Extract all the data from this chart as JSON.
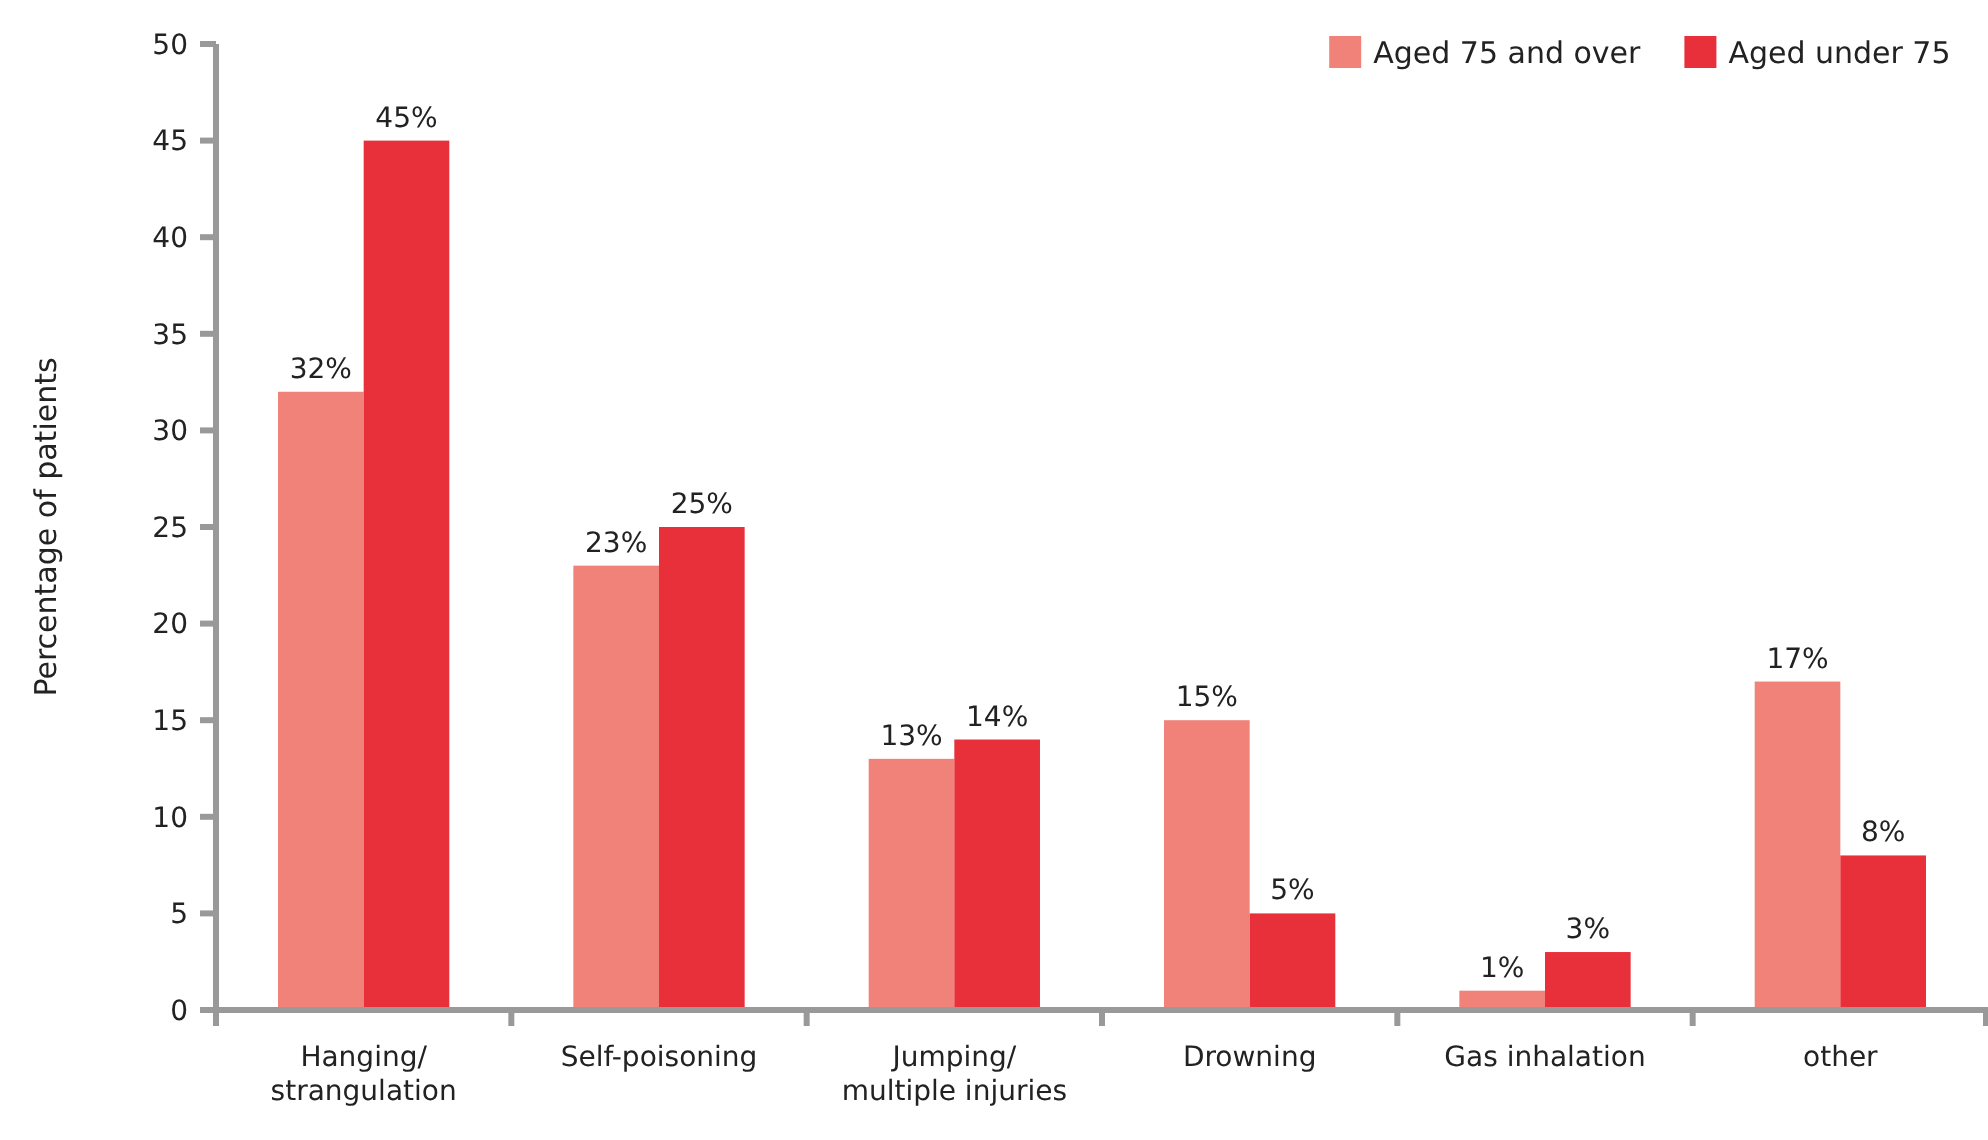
{
  "chart_data": {
    "type": "bar",
    "ylabel": "Percentage of patients",
    "categories": [
      "Hanging/ strangulation",
      "Self-poisoning",
      "Jumping/ multiple injuries",
      "Drowning",
      "Gas inhalation",
      "other"
    ],
    "series": [
      {
        "name": "Aged 75 and over",
        "color": "#f0827a",
        "values": [
          32,
          23,
          13,
          15,
          1,
          17
        ],
        "value_labels": [
          "32%",
          "23%",
          "13%",
          "15%",
          "1%",
          "17%"
        ]
      },
      {
        "name": "Aged under 75",
        "color": "#e8303a",
        "values": [
          45,
          25,
          14,
          5,
          3,
          8
        ],
        "value_labels": [
          "45%",
          "25%",
          "14%",
          "5%",
          "3%",
          "8%"
        ]
      }
    ],
    "ylim": [
      0,
      50
    ],
    "yticks": [
      0,
      5,
      10,
      15,
      20,
      25,
      30,
      35,
      40,
      45,
      50
    ],
    "grid": false,
    "legend": "top right"
  }
}
